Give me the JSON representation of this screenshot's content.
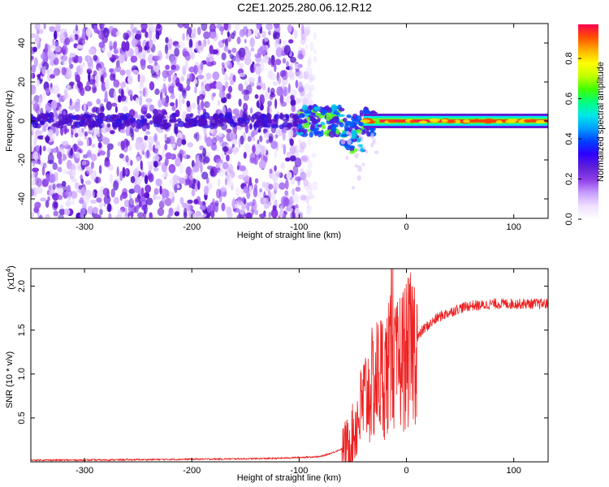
{
  "figure": {
    "title": "C2E1.2025.280.06.12.R12"
  },
  "chart_data": [
    {
      "type": "heatmap",
      "name": "spectrogram",
      "xlabel": "Height of straight line (km)",
      "ylabel": "Frequency (Hz)",
      "xlim": [
        -350,
        132
      ],
      "ylim": [
        -50,
        50
      ],
      "xticks": [
        -300,
        -200,
        -100,
        0,
        100
      ],
      "xtick_labels": [
        "-300",
        "-200",
        "-100",
        "0",
        "100"
      ],
      "yticks": [
        -40,
        -20,
        0,
        20,
        40
      ],
      "ytick_labels": [
        "-40",
        "-20",
        "0",
        "20",
        "40"
      ],
      "colorbar": {
        "label": "Normalized spectral amplitude",
        "range": [
          0,
          0.97
        ],
        "ticks": [
          0.0,
          0.2,
          0.4,
          0.6,
          0.8
        ],
        "tick_labels": [
          "0.0",
          "0.2",
          "0.4",
          "0.6",
          "0.8"
        ],
        "colormap": [
          "#ffffff",
          "#f0e0ff",
          "#c8a0ff",
          "#9040e8",
          "#6020d8",
          "#3000ff",
          "#0040ff",
          "#00a0ff",
          "#00e8e8",
          "#00ff80",
          "#40ff00",
          "#c0ff00",
          "#ffff00",
          "#ffb000",
          "#ff5000",
          "#ff0050"
        ]
      },
      "features": {
        "noise_region_x": [
          -350,
          -95
        ],
        "carrier_frequency_hz": 0,
        "strong_carrier_x": [
          -40,
          132
        ],
        "multipath_region_x": [
          -100,
          -30
        ]
      }
    },
    {
      "type": "line",
      "name": "snr",
      "xlabel": "Height of straight line (km)",
      "ylabel": "SNR (10 * v/v)",
      "exponent_label": "(x10",
      "exponent_value": "4",
      "exponent_close": ")",
      "xlim": [
        -350,
        132
      ],
      "ylim": [
        0,
        2.2
      ],
      "xticks": [
        -300,
        -200,
        -100,
        0,
        100
      ],
      "xtick_labels": [
        "-300",
        "-200",
        "-100",
        "0",
        "100"
      ],
      "yticks": [
        0.5,
        1.0,
        1.5,
        2.0
      ],
      "ytick_labels": [
        "0.5",
        "1.0",
        "1.5",
        "2.0"
      ],
      "series": [
        {
          "name": "SNR",
          "color": "#ee2222",
          "x": [
            -350,
            -300,
            -250,
            -200,
            -150,
            -120,
            -100,
            -80,
            -70,
            -60,
            -55,
            -50,
            -45,
            -42,
            -40,
            -35,
            -30,
            -25,
            -20,
            -15,
            -10,
            -5,
            0,
            5,
            10,
            15,
            20,
            25,
            30,
            40,
            50,
            60,
            70,
            80,
            90,
            100,
            110,
            120,
            132
          ],
          "y": [
            0.02,
            0.02,
            0.025,
            0.03,
            0.035,
            0.04,
            0.05,
            0.06,
            0.1,
            0.15,
            0.2,
            0.3,
            0.5,
            0.6,
            0.7,
            0.8,
            0.9,
            1.0,
            1.0,
            1.1,
            1.0,
            1.2,
            1.2,
            1.3,
            1.4,
            1.5,
            1.55,
            1.6,
            1.65,
            1.7,
            1.75,
            1.78,
            1.78,
            1.8,
            1.8,
            1.8,
            1.8,
            1.8,
            1.8
          ]
        }
      ]
    }
  ]
}
